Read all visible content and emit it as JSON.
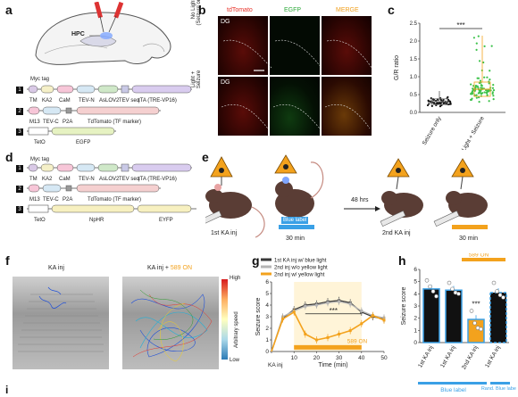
{
  "panels": {
    "a": "a",
    "b": "b",
    "c": "c",
    "d": "d",
    "e": "e",
    "f": "f",
    "g": "g",
    "h": "h",
    "i": "i"
  },
  "panel_a": {
    "brain_label": "HPC",
    "construct1": {
      "num": "1",
      "tag": "Myc tag",
      "parts": [
        "TM",
        "KA2",
        "CaM",
        "TEV-N",
        "AsLOV2",
        "TEV seq",
        "tTA (TRE-VP16)"
      ]
    },
    "construct2": {
      "num": "2",
      "parts": [
        "M13",
        "TEV-C",
        "P2A",
        "TdTomato (TF marker)"
      ]
    },
    "construct3": {
      "num": "3",
      "parts": [
        "TetO",
        "EGFP"
      ]
    }
  },
  "panel_b": {
    "headers": [
      "tdTomato",
      "EGFP",
      "MERGE"
    ],
    "header_colors": [
      "#e8332a",
      "#2faa3c",
      "#f0a020"
    ],
    "row_labels": [
      "No Light\n(Seizure only)",
      "Light +\nSeizure"
    ],
    "dg_label": "DG"
  },
  "panel_d": {
    "construct1": {
      "num": "1",
      "tag": "Myc tag",
      "parts": [
        "TM",
        "KA2",
        "CaM",
        "TEV-N",
        "AsLOV2",
        "TEV seq",
        "tTA (TRE-VP16)"
      ]
    },
    "construct2": {
      "num": "2",
      "parts": [
        "M13",
        "TEV-C",
        "P2A",
        "TdTomato (TF marker)"
      ]
    },
    "construct3": {
      "num": "3",
      "parts": [
        "TetO",
        "NpHR",
        "EYFP"
      ]
    }
  },
  "panel_e": {
    "label_1st": "1st KA inj",
    "blue_label": "Blue label",
    "duration1": "30 min",
    "wait": "48 hrs",
    "label_2nd": "2nd KA inj",
    "duration2": "30 min"
  },
  "panel_f": {
    "title_left": "KA inj",
    "title_right_prefix": "KA inj + ",
    "title_right_highlight": "589 ON",
    "colorbar_high": "High",
    "colorbar_low": "Low",
    "colorbar_label": "Arbitrary speed"
  },
  "chart_data": [
    {
      "type": "scatter",
      "panel": "c",
      "title": "",
      "ylabel": "G/R ratio",
      "categories": [
        "Seizure only",
        "Light + Seizure"
      ],
      "ylim": [
        0,
        2.5
      ],
      "yticks": [
        0,
        0.5,
        1.0,
        1.5,
        2.0,
        2.5
      ],
      "summary": {
        "Seizure only": {
          "median": 0.3,
          "q1": 0.22,
          "q3": 0.38,
          "max": 0.6
        },
        "Light + Seizure": {
          "median": 0.65,
          "q1": 0.45,
          "q3": 0.85,
          "max": 2.15
        }
      },
      "significance": "***",
      "colors": [
        "#111111",
        "#3cc24a"
      ]
    },
    {
      "type": "line",
      "panel": "g",
      "xlabel": "Time (min)",
      "ylabel": "Seizure score",
      "xlim": [
        0,
        50
      ],
      "ylim": [
        0,
        6
      ],
      "xticks": [
        0,
        10,
        20,
        30,
        40,
        50
      ],
      "yticks": [
        0,
        1,
        2,
        3,
        4,
        5,
        6
      ],
      "x0_label": "KA inj",
      "x": [
        0,
        5,
        10,
        15,
        20,
        25,
        30,
        35,
        40,
        45,
        50
      ],
      "series": [
        {
          "name": "1st KA inj w/ blue light",
          "color": "#3a3a3a",
          "values": [
            0,
            2.9,
            3.6,
            4.0,
            4.1,
            4.3,
            4.4,
            4.2,
            3.4,
            3.0,
            2.8
          ]
        },
        {
          "name": "2nd inj w/o yellow light",
          "color": "#b5b5b5",
          "values": [
            0,
            3.0,
            3.5,
            3.9,
            4.0,
            4.2,
            4.3,
            4.1,
            3.5,
            3.1,
            2.9
          ]
        },
        {
          "name": "2nd inj w/ yellow light",
          "color": "#f3a21d",
          "values": [
            0,
            2.8,
            3.4,
            1.5,
            1.0,
            1.2,
            1.5,
            1.8,
            2.4,
            3.1,
            2.7
          ]
        }
      ],
      "light_window_label": "589 ON",
      "light_window": [
        10,
        40
      ],
      "significance": "***"
    },
    {
      "type": "bar",
      "panel": "h",
      "ylabel": "Seizure score",
      "ylim": [
        0,
        6
      ],
      "yticks": [
        0,
        1,
        2,
        3,
        4,
        5,
        6
      ],
      "categories": [
        "1st KA inj",
        "1st KA inj",
        "2nd KA inj",
        "1st KA inj"
      ],
      "values": [
        4.4,
        4.3,
        1.9,
        4.1
      ],
      "points": [
        [
          5.1,
          4.6,
          4.2,
          3.8
        ],
        [
          4.9,
          4.4,
          4.1,
          4.0
        ],
        [
          2.6,
          1.6,
          1.2,
          1.1
        ],
        [
          4.9,
          4.2,
          3.9,
          3.7
        ]
      ],
      "fill_colors": [
        "#111111",
        "#111111",
        "#f3a21d",
        "#111111"
      ],
      "significance": "***",
      "light_label": "589 ON",
      "group_labels": [
        "Blue label",
        "Rand. Blue label"
      ]
    }
  ],
  "legend_g": [
    "1st KA inj w/ blue light",
    "2nd inj w/o yellow light",
    "2nd inj w/ yellow light"
  ]
}
